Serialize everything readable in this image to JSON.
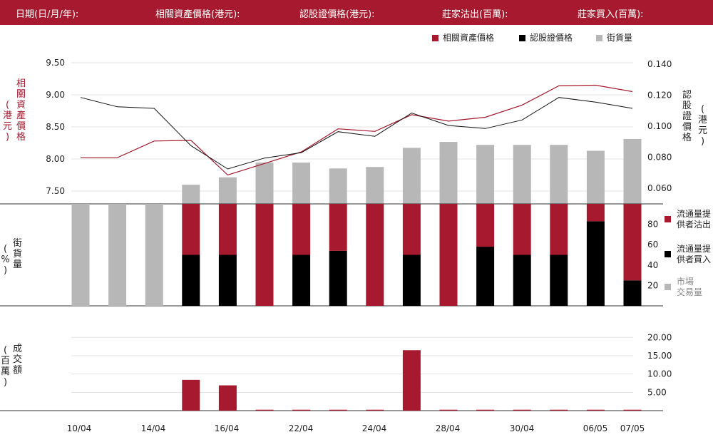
{
  "header": {
    "date_label": "日期(日/月/年):",
    "underlying_label": "相關資產價格(港元):",
    "warrant_label": "認股證價格(港元):",
    "lp_sell_label": "莊家沽出(百萬):",
    "lp_buy_label": "莊家買入(百萬):"
  },
  "legend": {
    "underlying": "相關資產價格",
    "warrant": "認股證價格",
    "outstanding": "街貨量"
  },
  "side_labels": {
    "left_price": [
      "相",
      "關",
      "資",
      "產",
      "價",
      "格"
    ],
    "left_price_unit": [
      "(",
      "港",
      "元",
      ")"
    ],
    "right_price": [
      "認",
      "股",
      "證",
      "價",
      "格"
    ],
    "right_price_unit": [
      "(",
      "港",
      "元",
      ")"
    ],
    "pct": [
      "街",
      "貨",
      "量"
    ],
    "pct_unit": [
      "(",
      "%",
      ")"
    ],
    "turnover": [
      "成",
      "交",
      "額"
    ],
    "turnover_unit": [
      "(",
      "百",
      "萬",
      ")"
    ]
  },
  "mid_legend": {
    "lp_sell": [
      "流通量提",
      "供者沽出"
    ],
    "lp_buy": [
      "流通量提",
      "供者買入"
    ],
    "market": [
      "市場",
      "交易量"
    ]
  },
  "chart_data": {
    "type": "combo",
    "x_tick_labels": [
      "10/04",
      "14/04",
      "16/04",
      "22/04",
      "24/04",
      "28/04",
      "30/04",
      "06/05",
      "07/05"
    ],
    "colors": {
      "red": "#a6192e",
      "black": "#000000",
      "gray": "#b7b7b7"
    },
    "price_panel": {
      "underlying_axis": {
        "ticks": [
          "9.50",
          "9.00",
          "8.50",
          "8.00",
          "7.50"
        ],
        "range": [
          7.3,
          9.6
        ]
      },
      "warrant_axis": {
        "ticks": [
          "0.140",
          "0.120",
          "0.100",
          "0.080",
          "0.060"
        ],
        "range": [
          0.05,
          0.145
        ]
      },
      "underlying": [
        8.02,
        8.02,
        8.28,
        8.29,
        7.75,
        7.93,
        8.11,
        8.47,
        8.43,
        8.69,
        8.59,
        8.65,
        8.84,
        9.14,
        9.15,
        9.05
      ],
      "warrant": [
        0.1185,
        0.1125,
        0.1115,
        0.0875,
        0.0725,
        0.0795,
        0.083,
        0.0965,
        0.0935,
        0.1085,
        0.1005,
        0.0985,
        0.104,
        0.1185,
        0.1155,
        0.1115
      ],
      "outstanding_pct": [
        null,
        null,
        null,
        13,
        18,
        28,
        28,
        24,
        25,
        38,
        42,
        40,
        40,
        40,
        36,
        44
      ]
    },
    "lp_panel": {
      "y_axis": {
        "ticks": [
          "80",
          "60",
          "40",
          "20"
        ],
        "range": [
          0,
          100
        ]
      },
      "lp_sell_pct": [
        0,
        0,
        0,
        50,
        50,
        100,
        50,
        46,
        100,
        50,
        100,
        42,
        50,
        50,
        17,
        75
      ],
      "lp_buy_pct": [
        0,
        0,
        0,
        50,
        50,
        0,
        50,
        54,
        0,
        50,
        0,
        58,
        50,
        50,
        83,
        25
      ],
      "market_pct": [
        100,
        100,
        100,
        0,
        0,
        0,
        0,
        0,
        0,
        0,
        0,
        0,
        0,
        0,
        0,
        0
      ]
    },
    "turnover_panel": {
      "y_axis": {
        "ticks": [
          "20.00",
          "15.00",
          "10.00",
          "5.00"
        ],
        "range": [
          0,
          22
        ]
      },
      "turnover": [
        0,
        0,
        0,
        8.4,
        6.9,
        0.25,
        0.25,
        0.25,
        0.25,
        16.5,
        0.25,
        0.25,
        0.25,
        0.25,
        0.25,
        0.25
      ]
    }
  }
}
